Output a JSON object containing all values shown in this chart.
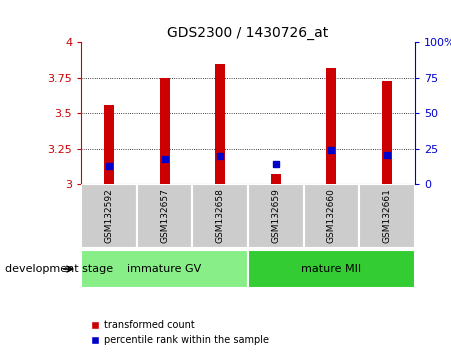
{
  "title": "GDS2300 / 1430726_at",
  "samples": [
    "GSM132592",
    "GSM132657",
    "GSM132658",
    "GSM132659",
    "GSM132660",
    "GSM132661"
  ],
  "red_bar_heights": [
    3.56,
    3.75,
    3.85,
    3.07,
    3.82,
    3.73
  ],
  "blue_marker_y": [
    3.13,
    3.175,
    3.2,
    3.14,
    3.24,
    3.205
  ],
  "bar_base": 3.0,
  "ylim_left": [
    3.0,
    4.0
  ],
  "ylim_right": [
    0,
    100
  ],
  "yticks_left": [
    3.0,
    3.25,
    3.5,
    3.75,
    4.0
  ],
  "yticks_right": [
    0,
    25,
    50,
    75,
    100
  ],
  "ytick_labels_left": [
    "3",
    "3.25",
    "3.5",
    "3.75",
    "4"
  ],
  "ytick_labels_right": [
    "0",
    "25",
    "50",
    "75",
    "100%"
  ],
  "left_axis_color": "#cc0000",
  "right_axis_color": "#0000cc",
  "bar_color": "#cc0000",
  "marker_color": "#0000cc",
  "grid_color": "#000000",
  "groups": [
    {
      "label": "immature GV",
      "indices": [
        0,
        1,
        2
      ],
      "color": "#88ee88"
    },
    {
      "label": "mature MII",
      "indices": [
        3,
        4,
        5
      ],
      "color": "#33cc33"
    }
  ],
  "group_label": "development stage",
  "legend_items": [
    {
      "color": "#cc0000",
      "label": "transformed count"
    },
    {
      "color": "#0000cc",
      "label": "percentile rank within the sample"
    }
  ],
  "sample_box_color": "#cccccc",
  "plot_bg_color": "#ffffff",
  "fig_bg_color": "#ffffff",
  "bar_width": 0.18,
  "marker_size": 5
}
